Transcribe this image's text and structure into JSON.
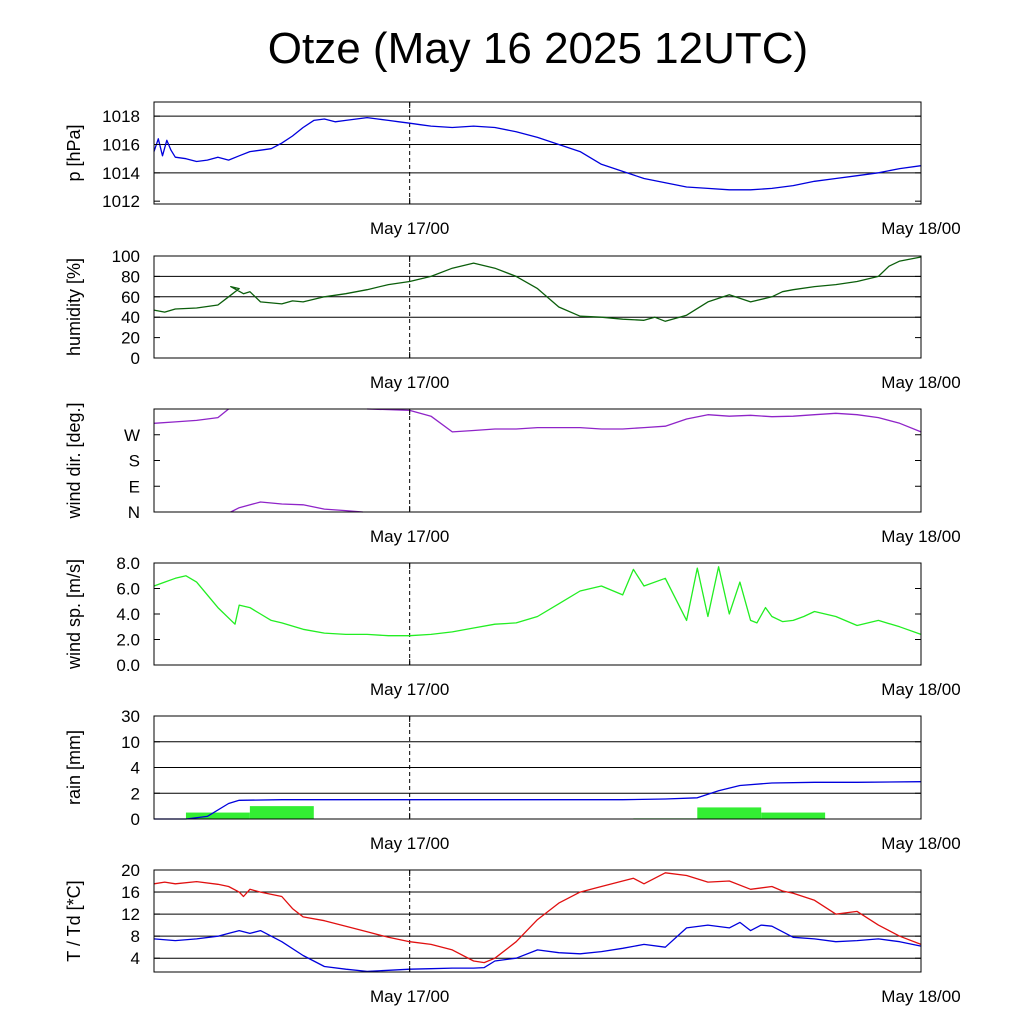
{
  "title": "Otze (May 16 2025 12UTC)",
  "chart_data": [
    {
      "id": "pressure",
      "type": "line",
      "ylabel": "p [hPa]",
      "ylim": [
        1011.8,
        1019
      ],
      "yticks": [
        1012,
        1014,
        1016,
        1018
      ],
      "ytick_labels": [
        "1012",
        "1014",
        "1016",
        "1018"
      ],
      "gridlines": [
        1014,
        1016,
        1018
      ],
      "x_axis": {
        "range_hours": [
          0,
          36
        ],
        "ticks": [
          12,
          36
        ],
        "tick_labels": [
          "May 17/00",
          "May 18/00"
        ],
        "dashed_marker": 12
      },
      "series": [
        {
          "color": "#0000dd",
          "x": [
            0,
            0.2,
            0.4,
            0.6,
            0.8,
            1,
            1.5,
            2,
            2.5,
            3,
            3.5,
            4,
            4.5,
            5,
            5.5,
            6,
            6.5,
            7,
            7.5,
            8,
            8.5,
            9,
            9.5,
            10,
            10.5,
            11,
            11.5,
            12,
            12.5,
            13,
            14,
            15,
            16,
            17,
            18,
            19,
            20,
            21,
            22,
            23,
            24,
            25,
            26,
            27,
            28,
            29,
            30,
            31,
            32,
            33,
            34,
            35,
            36
          ],
          "y": [
            1015.5,
            1016.4,
            1015.2,
            1016.3,
            1015.6,
            1015.1,
            1015.0,
            1014.8,
            1014.9,
            1015.1,
            1014.9,
            1015.2,
            1015.5,
            1015.6,
            1015.7,
            1016.1,
            1016.6,
            1017.2,
            1017.7,
            1017.8,
            1017.6,
            1017.7,
            1017.8,
            1017.9,
            1017.8,
            1017.7,
            1017.6,
            1017.5,
            1017.4,
            1017.3,
            1017.2,
            1017.3,
            1017.2,
            1016.9,
            1016.5,
            1016.0,
            1015.5,
            1014.6,
            1014.1,
            1013.6,
            1013.3,
            1013.0,
            1012.9,
            1012.8,
            1012.8,
            1012.9,
            1013.1,
            1013.4,
            1013.6,
            1013.8,
            1014.0,
            1014.3,
            1014.5
          ]
        }
      ]
    },
    {
      "id": "humidity",
      "type": "line",
      "ylabel": "humidity [%]",
      "ylim": [
        0,
        100
      ],
      "yticks": [
        0,
        20,
        40,
        60,
        80,
        100
      ],
      "ytick_labels": [
        "0",
        "20",
        "40",
        "60",
        "80",
        "100"
      ],
      "gridlines": [
        40,
        60,
        80
      ],
      "x_axis": {
        "range_hours": [
          0,
          36
        ],
        "ticks": [
          12,
          36
        ],
        "tick_labels": [
          "May 17/00",
          "May 18/00"
        ],
        "dashed_marker": 12
      },
      "series": [
        {
          "color": "#0b5e0b",
          "x": [
            0,
            0.5,
            1,
            2,
            3,
            3.5,
            4,
            3.6,
            4.2,
            4.5,
            5,
            5.5,
            6,
            6.5,
            7,
            8,
            9,
            10,
            11,
            12,
            13,
            14,
            15,
            16,
            17,
            18,
            19,
            20,
            21,
            22,
            23,
            23.5,
            24,
            25,
            26,
            27,
            28,
            29,
            29.5,
            30,
            31,
            32,
            33,
            34,
            34.5,
            35,
            36
          ],
          "y": [
            47,
            45,
            48,
            49,
            52,
            60,
            68,
            70,
            63,
            65,
            55,
            54,
            53,
            56,
            55,
            60,
            63,
            67,
            72,
            75,
            80,
            88,
            93,
            88,
            80,
            68,
            50,
            41,
            40,
            38,
            37,
            40,
            36,
            42,
            55,
            62,
            55,
            60,
            65,
            67,
            70,
            72,
            75,
            80,
            90,
            95,
            99
          ]
        }
      ]
    },
    {
      "id": "wind-direction",
      "type": "line",
      "ylabel": "wind dir. [deg.]",
      "ylim": [
        0,
        360
      ],
      "yticks": [
        0,
        90,
        180,
        270
      ],
      "ytick_labels": [
        "N",
        "E",
        "S",
        "W"
      ],
      "gridlines": [],
      "x_axis": {
        "range_hours": [
          0,
          36
        ],
        "ticks": [
          12,
          36
        ],
        "tick_labels": [
          "May 17/00",
          "May 18/00"
        ],
        "dashed_marker": 12
      },
      "series": [
        {
          "color": "#8f24c8",
          "segments": [
            {
              "x": [
                0,
                1,
                2,
                3,
                3.5
              ],
              "y": [
                310,
                315,
                320,
                330,
                360
              ]
            },
            {
              "x": [
                3.6,
                4,
                5,
                6,
                7,
                8,
                9,
                9.8
              ],
              "y": [
                0,
                15,
                35,
                28,
                25,
                10,
                5,
                0
              ]
            },
            {
              "x": [
                10,
                11,
                12,
                13,
                14,
                15,
                16,
                17,
                18,
                19,
                20,
                21,
                22,
                23,
                24,
                25,
                26,
                27,
                28,
                29,
                30,
                31,
                32,
                33,
                34,
                35,
                36
              ],
              "y": [
                360,
                358,
                355,
                335,
                280,
                285,
                290,
                290,
                295,
                295,
                295,
                290,
                290,
                295,
                300,
                325,
                340,
                335,
                338,
                333,
                335,
                340,
                345,
                340,
                330,
                310,
                280
              ]
            }
          ]
        }
      ]
    },
    {
      "id": "wind-speed",
      "type": "line",
      "ylabel": "wind sp. [m/s]",
      "ylim": [
        0,
        8
      ],
      "yticks": [
        0,
        2,
        4,
        6,
        8
      ],
      "ytick_labels": [
        "0.0",
        "2.0",
        "4.0",
        "6.0",
        "8.0"
      ],
      "gridlines": [],
      "x_axis": {
        "range_hours": [
          0,
          36
        ],
        "ticks": [
          12,
          36
        ],
        "tick_labels": [
          "May 17/00",
          "May 18/00"
        ],
        "dashed_marker": 12
      },
      "series": [
        {
          "color": "#22ee22",
          "x": [
            0,
            0.5,
            1,
            1.5,
            2,
            3,
            3.8,
            4,
            4.5,
            5,
            5.5,
            6,
            7,
            8,
            9,
            10,
            11,
            12,
            13,
            14,
            15,
            16,
            17,
            18,
            19,
            20,
            21,
            22,
            22.5,
            23,
            24,
            25,
            25.5,
            26,
            26.5,
            27,
            27.5,
            28,
            28.3,
            28.7,
            29,
            29.5,
            30,
            30.5,
            31,
            32,
            33,
            34,
            35,
            36
          ],
          "y": [
            6.2,
            6.5,
            6.8,
            7.0,
            6.5,
            4.5,
            3.2,
            4.7,
            4.5,
            4.0,
            3.5,
            3.3,
            2.8,
            2.5,
            2.4,
            2.4,
            2.3,
            2.3,
            2.4,
            2.6,
            2.9,
            3.2,
            3.3,
            3.8,
            4.8,
            5.8,
            6.2,
            5.5,
            7.5,
            6.2,
            6.8,
            3.5,
            7.6,
            3.8,
            7.7,
            4.0,
            6.5,
            3.5,
            3.3,
            4.5,
            3.8,
            3.4,
            3.5,
            3.8,
            4.2,
            3.8,
            3.1,
            3.5,
            3.0,
            2.4
          ]
        }
      ]
    },
    {
      "id": "rain",
      "type": "bar",
      "ylabel": "rain [mm]",
      "yscale": "nonlinear",
      "ylim": [
        0,
        30
      ],
      "yticks": [
        0,
        2,
        4,
        10,
        30
      ],
      "ytick_labels": [
        "0",
        "2",
        "4",
        "10",
        "30"
      ],
      "gridlines": [
        2,
        4,
        10
      ],
      "x_axis": {
        "range_hours": [
          0,
          36
        ],
        "ticks": [
          12,
          36
        ],
        "tick_labels": [
          "May 17/00",
          "May 18/00"
        ],
        "dashed_marker": 12
      },
      "bars": {
        "color": "#33ee33",
        "intervals": [
          {
            "x0": 1.5,
            "x1": 4.5,
            "value": 0.5
          },
          {
            "x0": 4.5,
            "x1": 7.5,
            "value": 1.0
          },
          {
            "x0": 22.5,
            "x1": 25.5,
            "value": 0.05
          },
          {
            "x0": 25.5,
            "x1": 28.5,
            "value": 0.9
          },
          {
            "x0": 28.5,
            "x1": 31.5,
            "value": 0.5
          }
        ]
      },
      "series": [
        {
          "color": "#0000dd",
          "x": [
            0,
            1.5,
            2.5,
            3.5,
            4,
            6,
            12,
            18,
            22,
            24,
            25.5,
            26.5,
            27.5,
            29,
            31,
            33,
            36
          ],
          "y": [
            0,
            0,
            0.2,
            1.2,
            1.45,
            1.5,
            1.5,
            1.5,
            1.5,
            1.55,
            1.65,
            2.2,
            2.6,
            2.8,
            2.85,
            2.85,
            2.9
          ]
        }
      ]
    },
    {
      "id": "temperature-dewpoint",
      "type": "line",
      "ylabel": "T / Td [*C]",
      "ylim": [
        1.5,
        20
      ],
      "yticks": [
        4,
        8,
        12,
        16,
        20
      ],
      "ytick_labels": [
        "4",
        "8",
        "12",
        "16",
        "20"
      ],
      "gridlines": [
        4,
        8,
        12,
        16
      ],
      "x_axis": {
        "range_hours": [
          0,
          36
        ],
        "ticks": [
          12,
          36
        ],
        "tick_labels": [
          "May 17/00",
          "May 18/00"
        ],
        "dashed_marker": 12
      },
      "series": [
        {
          "color": "#e01010",
          "x": [
            0,
            0.5,
            1,
            2,
            3,
            3.5,
            4,
            4.2,
            4.5,
            5,
            6,
            6.5,
            7,
            8,
            9,
            10,
            11,
            12,
            13,
            14,
            15,
            15.5,
            16,
            17,
            18,
            19,
            20,
            21,
            22,
            22.5,
            23,
            24,
            25,
            26,
            27,
            28,
            29,
            29.5,
            30,
            31,
            32,
            33,
            34,
            35,
            36
          ],
          "y": [
            17.5,
            17.8,
            17.5,
            17.9,
            17.4,
            17.0,
            16.0,
            15.2,
            16.5,
            16.0,
            15.2,
            13.0,
            11.5,
            10.8,
            9.8,
            8.8,
            7.8,
            7.0,
            6.5,
            5.5,
            3.5,
            3.2,
            4.0,
            7.0,
            11.0,
            14.0,
            16.0,
            17.0,
            18.0,
            18.5,
            17.5,
            19.5,
            19.0,
            17.8,
            18.0,
            16.5,
            17.0,
            16.2,
            15.8,
            14.5,
            12.0,
            12.5,
            10.0,
            8.0,
            6.5
          ]
        },
        {
          "color": "#0000dd",
          "x": [
            0,
            1,
            2,
            3,
            3.5,
            4,
            4.5,
            5,
            6,
            7,
            8,
            9,
            10,
            11,
            12,
            13,
            14,
            15,
            15.5,
            16,
            17,
            18,
            19,
            20,
            21,
            22,
            23,
            24,
            25,
            26,
            27,
            27.5,
            28,
            28.5,
            29,
            30,
            31,
            32,
            33,
            34,
            35,
            36
          ],
          "y": [
            7.5,
            7.2,
            7.5,
            8.0,
            8.5,
            9.0,
            8.5,
            9.0,
            7.0,
            4.5,
            2.5,
            2.0,
            1.6,
            1.8,
            2.0,
            2.1,
            2.2,
            2.2,
            2.3,
            3.5,
            4.0,
            5.5,
            5.0,
            4.8,
            5.2,
            5.8,
            6.5,
            6.0,
            9.5,
            10.0,
            9.5,
            10.5,
            9.0,
            10.0,
            9.8,
            7.8,
            7.5,
            7.0,
            7.2,
            7.5,
            7.0,
            6.2
          ]
        }
      ]
    }
  ]
}
